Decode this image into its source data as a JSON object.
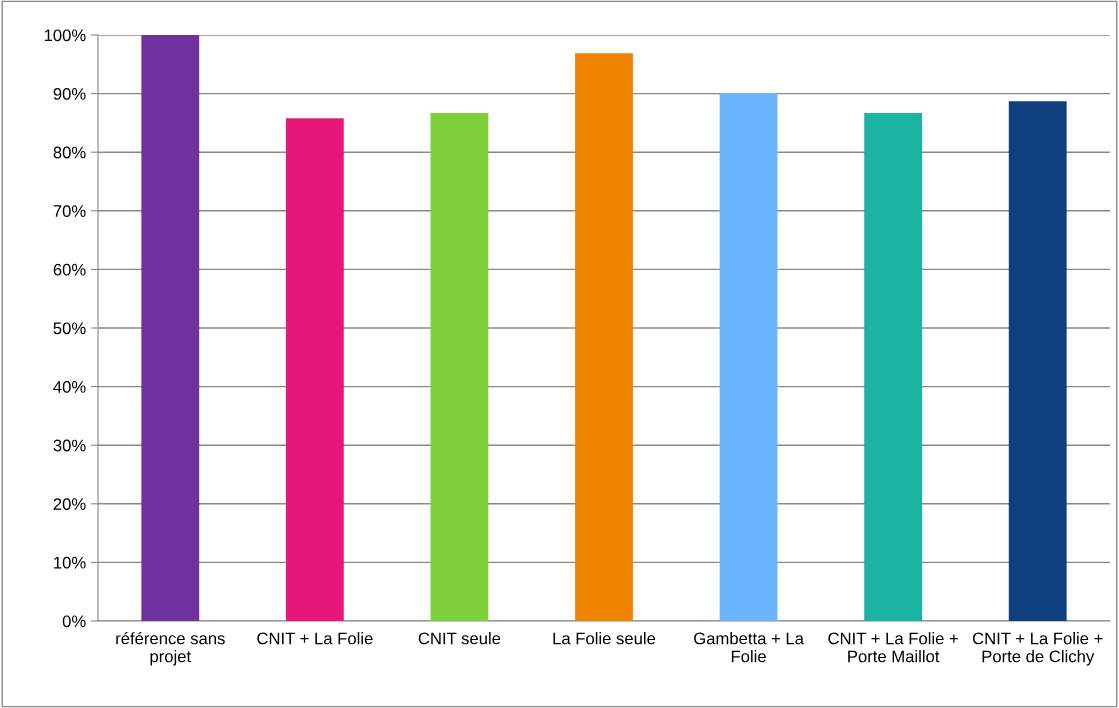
{
  "chart_data": {
    "type": "bar",
    "categories": [
      "référence sans projet",
      "CNIT + La Folie",
      "CNIT seule",
      "La Folie seule",
      "Gambetta + La Folie",
      "CNIT + La Folie + Porte Maillot",
      "CNIT + La Folie + Porte de Clichy"
    ],
    "values": [
      100,
      85.8,
      86.7,
      96.9,
      90.1,
      86.7,
      88.7
    ],
    "colors": [
      "#7030a0",
      "#e8177a",
      "#7fd13b",
      "#f08300",
      "#6bb5ff",
      "#1bb3a1",
      "#0e3f7e"
    ],
    "ylim": [
      0,
      100
    ],
    "yticks": [
      {
        "value": 0,
        "label": "0%"
      },
      {
        "value": 10,
        "label": "10%"
      },
      {
        "value": 20,
        "label": "20%"
      },
      {
        "value": 30,
        "label": "30%"
      },
      {
        "value": 40,
        "label": "40%"
      },
      {
        "value": 50,
        "label": "50%"
      },
      {
        "value": 60,
        "label": "60%"
      },
      {
        "value": 70,
        "label": "70%"
      },
      {
        "value": 80,
        "label": "80%"
      },
      {
        "value": 90,
        "label": "90%"
      },
      {
        "value": 100,
        "label": "100%"
      }
    ],
    "grid": "y",
    "legend": false
  }
}
